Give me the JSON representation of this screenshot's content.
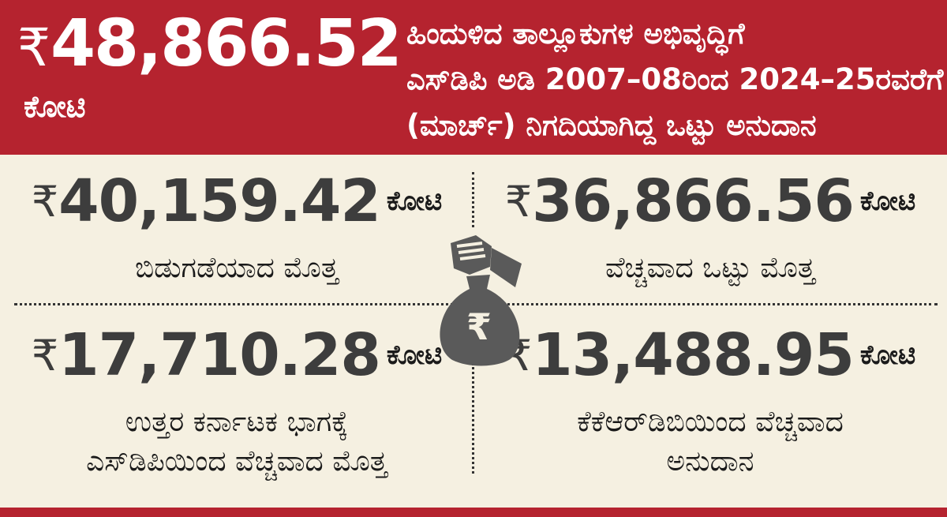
{
  "header": {
    "rupee_symbol": "₹",
    "amount": "48,866.52",
    "unit": "ಕೋಟಿ",
    "description_lines": [
      "ಹಿಂದುಳಿದ ತಾಲ್ಲೂಕುಗಳ ಅಭಿವೃದ್ಧಿಗೆ",
      "ಎಸ್‌ಡಿಪಿ ಅಡಿ 2007–08ರಿಂದ 2024–25ರವರೆಗೆ",
      "(ಮಾರ್ಚ್) ನಿಗದಿಯಾಗಿದ್ದ ಒಟ್ಟು ಅನುದಾನ"
    ]
  },
  "stats": {
    "released": {
      "rupee_symbol": "₹",
      "amount": "40,159.42",
      "unit": "ಕೋಟಿ",
      "desc_lines": [
        "ಬಿಡುಗಡೆಯಾದ ಮೊತ್ತ"
      ]
    },
    "spent": {
      "rupee_symbol": "₹",
      "amount": "36,866.56",
      "unit": "ಕೋಟಿ",
      "desc_lines": [
        "ವೆಚ್ಚವಾದ ಒಟ್ಟು ಮೊತ್ತ"
      ]
    },
    "north": {
      "rupee_symbol": "₹",
      "amount": "17,710.28",
      "unit": "ಕೋಟಿ",
      "desc_lines": [
        "ಉತ್ತರ ಕರ್ನಾಟಕ ಭಾಗಕ್ಕೆ",
        "ಎಸ್‌ಡಿಪಿಯಿಂದ ವೆಚ್ಚವಾದ ಮೊತ್ತ"
      ]
    },
    "kkrdb": {
      "rupee_symbol": "₹",
      "amount": "13,488.95",
      "unit": "ಕೋಟಿ",
      "desc_lines": [
        "ಕೆಕೆಆರ್‌ಡಿಬಿಯಿಂದ ವೆಚ್ಚವಾದ",
        "ಅನುದಾನ"
      ]
    }
  },
  "icons": {
    "center": "money-bag-hand-icon",
    "bag_symbol": "₹"
  },
  "colors": {
    "header_bg": "#b5232f",
    "panel_bg": "#f5f0e1",
    "amount_text": "#3d3d3d",
    "icon": "#5a5a5a"
  }
}
